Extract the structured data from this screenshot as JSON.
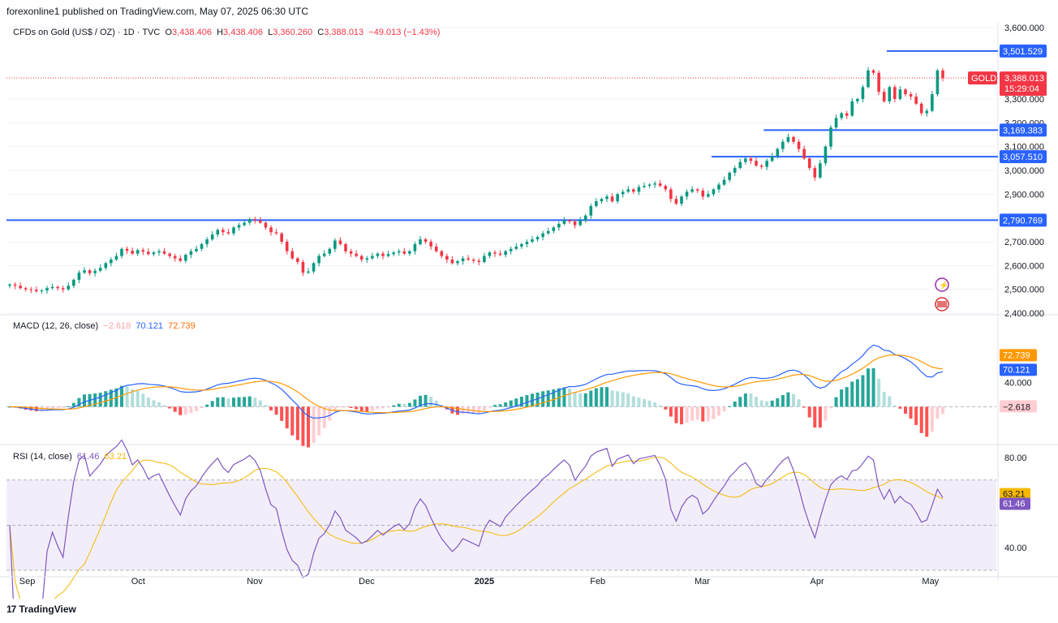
{
  "header": {
    "published_text": "forexonline1 published on TradingView.com, May 07, 2025 06:30 UTC"
  },
  "main_legend": {
    "symbol": "CFDs on Gold (US$ / OZ) · 1D · TVC",
    "open_label": "O",
    "open": "3,438.406",
    "high_label": "H",
    "high": "3,438.406",
    "low_label": "L",
    "low": "3,360.260",
    "close_label": "C",
    "close": "3,388.013",
    "change": "−49.013 (−1.43%)"
  },
  "macd_legend": {
    "title": "MACD (12, 26, close)",
    "hist": "−2.618",
    "macd": "70.121",
    "signal": "72.739"
  },
  "rsi_legend": {
    "title": "RSI (14, close)",
    "rsi": "61.46",
    "ma": "63.21"
  },
  "footer": {
    "brand": "TradingView",
    "logo": "17"
  },
  "colors": {
    "up": "#089981",
    "down": "#f23645",
    "level": "#2962ff",
    "macd": "#2962ff",
    "signal": "#ff9800",
    "rsi": "#7e57c2",
    "rsi_ma": "#f5b800",
    "price_tag": "#f23645"
  },
  "chart_data": [
    {
      "type": "candlestick",
      "symbol": "GOLD",
      "ylim": [
        2400,
        3600
      ],
      "y_ticks": [
        "3,600.000",
        "3,300.000",
        "3,200.000",
        "3,100.000",
        "3,000.000",
        "2,900.000",
        "2,800.000",
        "2,700.000",
        "2,600.000",
        "2,500.000",
        "2,400.000"
      ],
      "x_ticks": [
        "Sep",
        "Oct",
        "Nov",
        "Dec",
        "2025",
        "Feb",
        "Mar",
        "Apr",
        "May"
      ],
      "x_tick_dates": [
        "2024-09-01",
        "2024-10-01",
        "2024-11-01",
        "2024-12-01",
        "2025-01-01",
        "2025-02-01",
        "2025-03-01",
        "2025-04-01",
        "2025-05-01"
      ],
      "date_range": [
        "2024-08-29",
        "2025-05-07"
      ],
      "horizontal_levels": [
        {
          "value": 3501.529,
          "label": "3,501.529",
          "from": "2025-04-22"
        },
        {
          "value": 3169.383,
          "label": "3,169.383",
          "from": "2025-03-20"
        },
        {
          "value": 3057.51,
          "label": "3,057.510",
          "from": "2025-03-06"
        },
        {
          "value": 2790.769,
          "label": "2,790.769",
          "from": "2024-08-29"
        }
      ],
      "last_price": {
        "label": "GOLD",
        "value": "3,388.013",
        "countdown": "15:29:04"
      },
      "closes": [
        2520,
        2515,
        2505,
        2500,
        2498,
        2492,
        2495,
        2505,
        2510,
        2505,
        2500,
        2515,
        2540,
        2570,
        2580,
        2568,
        2578,
        2590,
        2610,
        2625,
        2640,
        2670,
        2662,
        2650,
        2665,
        2658,
        2648,
        2655,
        2660,
        2650,
        2640,
        2630,
        2620,
        2645,
        2660,
        2670,
        2690,
        2710,
        2730,
        2750,
        2740,
        2735,
        2760,
        2770,
        2780,
        2795,
        2790,
        2780,
        2760,
        2740,
        2735,
        2700,
        2660,
        2630,
        2615,
        2570,
        2575,
        2610,
        2640,
        2650,
        2670,
        2705,
        2690,
        2660,
        2650,
        2640,
        2625,
        2630,
        2640,
        2650,
        2640,
        2648,
        2655,
        2660,
        2650,
        2660,
        2690,
        2710,
        2700,
        2680,
        2660,
        2640,
        2625,
        2610,
        2618,
        2630,
        2625,
        2620,
        2615,
        2640,
        2655,
        2650,
        2645,
        2660,
        2670,
        2680,
        2690,
        2700,
        2710,
        2720,
        2735,
        2745,
        2760,
        2775,
        2790,
        2785,
        2770,
        2790,
        2810,
        2850,
        2870,
        2880,
        2890,
        2870,
        2900,
        2910,
        2920,
        2910,
        2930,
        2935,
        2940,
        2945,
        2935,
        2920,
        2880,
        2860,
        2890,
        2910,
        2920,
        2915,
        2890,
        2900,
        2920,
        2940,
        2960,
        2990,
        3010,
        3035,
        3050,
        3040,
        3020,
        3015,
        3040,
        3060,
        3090,
        3120,
        3140,
        3120,
        3090,
        3050,
        3010,
        2970,
        3030,
        3100,
        3180,
        3220,
        3240,
        3230,
        3290,
        3300,
        3350,
        3420,
        3410,
        3330,
        3290,
        3350,
        3300,
        3340,
        3320,
        3310,
        3280,
        3240,
        3250,
        3320,
        3420,
        3388
      ]
    },
    {
      "type": "macd",
      "params": "12, 26, close",
      "ylim": [
        -60,
        150
      ],
      "y_ticks": [
        "40.000"
      ],
      "current": {
        "macd": 70.121,
        "signal": 72.739,
        "hist": -2.618
      }
    },
    {
      "type": "rsi",
      "params": "14, close",
      "ylim": [
        30,
        85
      ],
      "band": [
        30,
        70
      ],
      "y_ticks": [
        "80.00",
        "40.00"
      ],
      "current": {
        "rsi": 61.46,
        "ma": 63.21
      }
    }
  ]
}
